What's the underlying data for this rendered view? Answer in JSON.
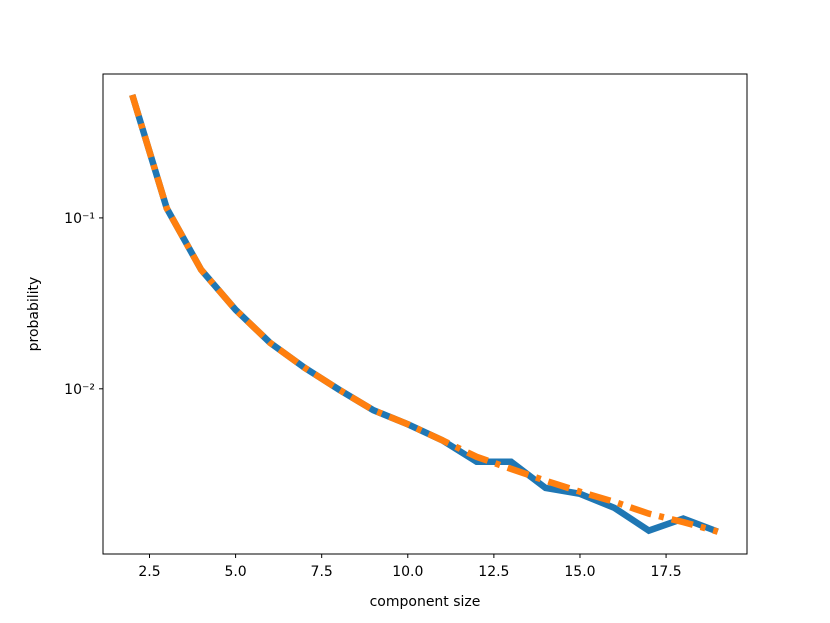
{
  "chart_data": {
    "type": "line",
    "x_label": "component size",
    "y_label": "probability",
    "x": [
      2,
      3,
      4,
      5,
      6,
      7,
      8,
      9,
      10,
      11,
      12,
      13,
      14,
      15,
      16,
      17,
      18,
      19
    ],
    "series": [
      {
        "color": "#1f77b4",
        "style": "solid",
        "values": [
          0.524,
          0.114,
          0.0497,
          0.029,
          0.0186,
          0.0133,
          0.0099,
          0.0075,
          0.0062,
          0.005,
          0.00374,
          0.00374,
          0.00263,
          0.00243,
          0.00201,
          0.00148,
          0.00174,
          0.00146
        ]
      },
      {
        "color": "#ff7f0e",
        "style": "dashdot",
        "values": [
          0.524,
          0.114,
          0.0497,
          0.029,
          0.0186,
          0.0133,
          0.0099,
          0.0075,
          0.0062,
          0.005,
          0.004,
          0.0034,
          0.0029,
          0.0025,
          0.00218,
          0.00186,
          0.00166,
          0.00146
        ]
      }
    ],
    "xlim": [
      1.15,
      19.85
    ],
    "xticks": [
      2.5,
      {
        "value": 5,
        "label": "5.0"
      },
      7.5,
      {
        "value": 10,
        "label": "10.0"
      },
      12.5,
      {
        "value": 15,
        "label": "15.0"
      },
      17.5
    ],
    "ylim": [
      0.00108,
      0.695
    ],
    "yscale": "log",
    "yticks": [
      {
        "value": 0.01,
        "label": "10⁻²"
      },
      {
        "value": 0.1,
        "label": "10⁻¹"
      }
    ],
    "grid": false
  }
}
